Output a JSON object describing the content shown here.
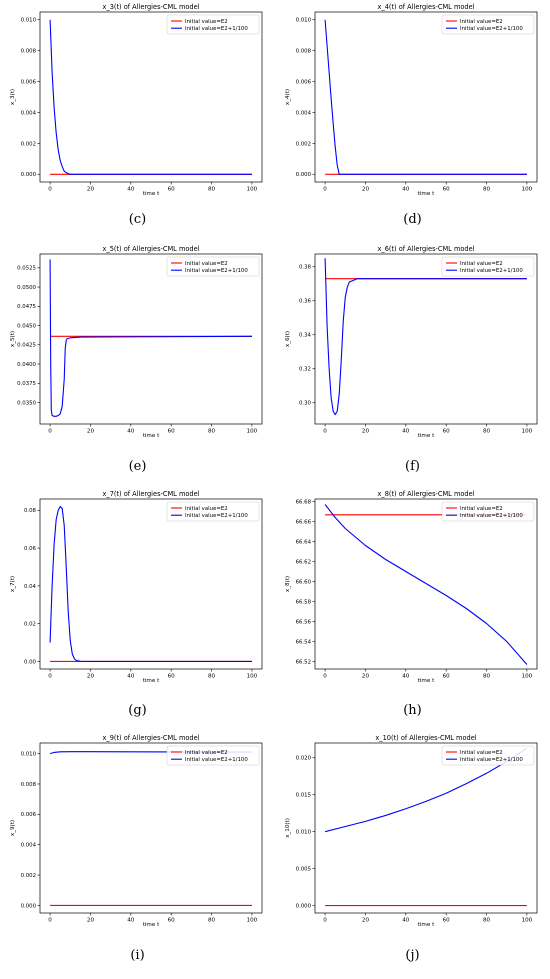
{
  "colors": {
    "red": "#ff0000",
    "blue": "#0000ff",
    "axis": "#000000"
  },
  "chart_data": [
    {
      "id": "c",
      "caption": "(c)",
      "type": "line",
      "title": "x_3(t) of Allergies-CML model",
      "xlabel": "time t",
      "ylabel": "x_3(t)",
      "xlim": [
        -5,
        105
      ],
      "ylim": [
        -0.0005,
        0.0105
      ],
      "xticks": [
        0,
        20,
        40,
        60,
        80,
        100
      ],
      "xtick_labels": [
        "0",
        "20",
        "40",
        "60",
        "80",
        "100"
      ],
      "yticks": [
        0,
        0.002,
        0.004,
        0.006,
        0.008,
        0.01
      ],
      "ytick_labels": [
        "0.000",
        "0.002",
        "0.004",
        "0.006",
        "0.008",
        "0.010"
      ],
      "legend_position": "top-right",
      "series": [
        {
          "name": "Initial value=E2",
          "color": "#ff0000",
          "x": [
            0,
            100
          ],
          "y": [
            0,
            0
          ]
        },
        {
          "name": "Initial value=E2+1/100",
          "color": "#0000ff",
          "x": [
            0,
            1,
            2,
            3,
            4,
            5,
            6,
            7,
            8,
            10,
            12,
            100
          ],
          "y": [
            0.01,
            0.0066,
            0.0043,
            0.0027,
            0.0016,
            0.0009,
            0.0005,
            0.0002,
            0.0001,
            0,
            0,
            0
          ]
        }
      ]
    },
    {
      "id": "d",
      "caption": "(d)",
      "type": "line",
      "title": "x_4(t) of Allergies-CML model",
      "xlabel": "time t",
      "ylabel": "x_4(t)",
      "xlim": [
        -5,
        105
      ],
      "ylim": [
        -0.0005,
        0.0105
      ],
      "xticks": [
        0,
        20,
        40,
        60,
        80,
        100
      ],
      "xtick_labels": [
        "0",
        "20",
        "40",
        "60",
        "80",
        "100"
      ],
      "yticks": [
        0,
        0.002,
        0.004,
        0.006,
        0.008,
        0.01
      ],
      "ytick_labels": [
        "0.000",
        "0.002",
        "0.004",
        "0.006",
        "0.008",
        "0.010"
      ],
      "legend_position": "top-right",
      "series": [
        {
          "name": "Initial value=E2",
          "color": "#ff0000",
          "x": [
            0,
            100
          ],
          "y": [
            0,
            0
          ]
        },
        {
          "name": "Initial value=E2+1/100",
          "color": "#0000ff",
          "x": [
            0,
            1,
            2,
            3,
            4,
            5,
            6,
            7,
            100
          ],
          "y": [
            0.01,
            0.0083,
            0.0066,
            0.0049,
            0.0033,
            0.0018,
            0.0006,
            0,
            0
          ]
        }
      ]
    },
    {
      "id": "e",
      "caption": "(e)",
      "type": "line",
      "title": "x_5(t) of Allergies-CML model",
      "xlabel": "time t",
      "ylabel": "x_5(t)",
      "xlim": [
        -5,
        105
      ],
      "ylim": [
        0.0322,
        0.0543
      ],
      "xticks": [
        0,
        20,
        40,
        60,
        80,
        100
      ],
      "xtick_labels": [
        "0",
        "20",
        "40",
        "60",
        "80",
        "100"
      ],
      "yticks": [
        0.035,
        0.0375,
        0.04,
        0.0425,
        0.045,
        0.0475,
        0.05,
        0.0525
      ],
      "ytick_labels": [
        "0.0350",
        "0.0375",
        "0.0400",
        "0.0425",
        "0.0450",
        "0.0475",
        "0.0500",
        "0.0525"
      ],
      "legend_position": "top-right",
      "series": [
        {
          "name": "Initial value=E2",
          "color": "#ff0000",
          "x": [
            0,
            100
          ],
          "y": [
            0.0436,
            0.0436
          ]
        },
        {
          "name": "Initial value=E2+1/100",
          "color": "#0000ff",
          "x": [
            0,
            0.3,
            0.6,
            1,
            2,
            3,
            4,
            5,
            6,
            7,
            7.5,
            8,
            8.5,
            10,
            15,
            100
          ],
          "y": [
            0.0536,
            0.04,
            0.034,
            0.0333,
            0.0332,
            0.0332,
            0.0333,
            0.0335,
            0.0345,
            0.038,
            0.042,
            0.0431,
            0.0433,
            0.0434,
            0.0435,
            0.0436
          ]
        }
      ]
    },
    {
      "id": "f",
      "caption": "(f)",
      "type": "line",
      "title": "x_6(t) of Allergies-CML model",
      "xlabel": "time t",
      "ylabel": "x_6(t)",
      "xlim": [
        -5,
        105
      ],
      "ylim": [
        0.2875,
        0.3875
      ],
      "xticks": [
        0,
        20,
        40,
        60,
        80,
        100
      ],
      "xtick_labels": [
        "0",
        "20",
        "40",
        "60",
        "80",
        "100"
      ],
      "yticks": [
        0.3,
        0.32,
        0.34,
        0.36,
        0.38
      ],
      "ytick_labels": [
        "0.30",
        "0.32",
        "0.34",
        "0.36",
        "0.38"
      ],
      "legend_position": "top-right",
      "series": [
        {
          "name": "Initial value=E2",
          "color": "#ff0000",
          "x": [
            0,
            100
          ],
          "y": [
            0.373,
            0.373
          ]
        },
        {
          "name": "Initial value=E2+1/100",
          "color": "#0000ff",
          "x": [
            0,
            0.5,
            1,
            2,
            3,
            4,
            5,
            6,
            7,
            8,
            9,
            10,
            11,
            12,
            14,
            16,
            20,
            100
          ],
          "y": [
            0.385,
            0.365,
            0.345,
            0.32,
            0.303,
            0.295,
            0.293,
            0.295,
            0.305,
            0.325,
            0.348,
            0.362,
            0.368,
            0.371,
            0.372,
            0.373,
            0.373,
            0.373
          ]
        }
      ]
    },
    {
      "id": "g",
      "caption": "(g)",
      "type": "line",
      "title": "x_7(t) of Allergies-CML model",
      "xlabel": "time t",
      "ylabel": "x_7(t)",
      "xlim": [
        -5,
        105
      ],
      "ylim": [
        -0.004,
        0.086
      ],
      "xticks": [
        0,
        20,
        40,
        60,
        80,
        100
      ],
      "xtick_labels": [
        "0",
        "20",
        "40",
        "60",
        "80",
        "100"
      ],
      "yticks": [
        0,
        0.02,
        0.04,
        0.06,
        0.08
      ],
      "ytick_labels": [
        "0.00",
        "0.02",
        "0.04",
        "0.06",
        "0.08"
      ],
      "legend_position": "top-right",
      "series": [
        {
          "name": "Initial value=E2",
          "color": "#ff0000",
          "x": [
            0,
            100
          ],
          "y": [
            0,
            0
          ]
        },
        {
          "name": "Initial value=E2+1/100",
          "color": "#0000ff",
          "x": [
            0,
            0.5,
            1,
            2,
            3,
            4,
            5,
            6,
            7,
            8,
            9,
            10,
            11,
            12,
            13,
            15,
            18,
            100
          ],
          "y": [
            0.01,
            0.025,
            0.04,
            0.062,
            0.075,
            0.08,
            0.082,
            0.081,
            0.072,
            0.05,
            0.026,
            0.011,
            0.004,
            0.0015,
            0.0005,
            0.0001,
            0,
            0
          ]
        }
      ]
    },
    {
      "id": "h",
      "caption": "(h)",
      "type": "line",
      "title": "x_8(t) of Allergies-CML model",
      "xlabel": "time t",
      "ylabel": "x_8(t)",
      "xlim": [
        -5,
        105
      ],
      "ylim": [
        66.5125,
        66.6825
      ],
      "xticks": [
        0,
        20,
        40,
        60,
        80,
        100
      ],
      "xtick_labels": [
        "0",
        "20",
        "40",
        "60",
        "80",
        "100"
      ],
      "yticks": [
        66.52,
        66.54,
        66.56,
        66.58,
        66.6,
        66.62,
        66.64,
        66.66,
        66.68
      ],
      "ytick_labels": [
        "66.52",
        "66.54",
        "66.56",
        "66.58",
        "66.60",
        "66.62",
        "66.64",
        "66.66",
        "66.68"
      ],
      "legend_position": "top-right",
      "series": [
        {
          "name": "Initial value=E2",
          "color": "#ff0000",
          "x": [
            0,
            100
          ],
          "y": [
            66.6667,
            66.6667
          ]
        },
        {
          "name": "Initial value=E2+1/100",
          "color": "#0000ff",
          "x": [
            0,
            5,
            10,
            20,
            30,
            40,
            50,
            60,
            70,
            80,
            90,
            100
          ],
          "y": [
            66.677,
            66.664,
            66.653,
            66.636,
            66.622,
            66.61,
            66.598,
            66.586,
            66.573,
            66.558,
            66.54,
            66.517
          ]
        }
      ]
    },
    {
      "id": "i",
      "caption": "(i)",
      "type": "line",
      "title": "x_9(t) of Allergies-CML model",
      "xlabel": "time t",
      "ylabel": "x_9(t)",
      "xlim": [
        -5,
        105
      ],
      "ylim": [
        -0.0005,
        0.0107
      ],
      "xticks": [
        0,
        20,
        40,
        60,
        80,
        100
      ],
      "xtick_labels": [
        "0",
        "20",
        "40",
        "60",
        "80",
        "100"
      ],
      "yticks": [
        0,
        0.002,
        0.004,
        0.006,
        0.008,
        0.01
      ],
      "ytick_labels": [
        "0.000",
        "0.002",
        "0.004",
        "0.006",
        "0.008",
        "0.010"
      ],
      "legend_position": "top-right",
      "series": [
        {
          "name": "Initial value=E2",
          "color": "#ff0000",
          "x": [
            0,
            100
          ],
          "y": [
            0,
            0
          ]
        },
        {
          "name": "Initial value=E2+1/100",
          "color": "#0000ff",
          "x": [
            0,
            2,
            5,
            10,
            20,
            40,
            60,
            80,
            100
          ],
          "y": [
            0.01,
            0.01008,
            0.01012,
            0.01013,
            0.01013,
            0.01012,
            0.01011,
            0.0101,
            0.0101
          ]
        }
      ]
    },
    {
      "id": "j",
      "caption": "(j)",
      "type": "line",
      "title": "x_10(t) of Allergies-CML model",
      "xlabel": "time t",
      "ylabel": "x_10(t)",
      "xlim": [
        -5,
        105
      ],
      "ylim": [
        -0.001,
        0.022
      ],
      "xticks": [
        0,
        20,
        40,
        60,
        80,
        100
      ],
      "xtick_labels": [
        "0",
        "20",
        "40",
        "60",
        "80",
        "100"
      ],
      "yticks": [
        0,
        0.005,
        0.01,
        0.015,
        0.02
      ],
      "ytick_labels": [
        "0.000",
        "0.005",
        "0.010",
        "0.015",
        "0.020"
      ],
      "legend_position": "top-right",
      "series": [
        {
          "name": "Initial value=E2",
          "color": "#ff0000",
          "x": [
            0,
            100
          ],
          "y": [
            0,
            0
          ]
        },
        {
          "name": "Initial value=E2+1/100",
          "color": "#0000ff",
          "x": [
            0,
            10,
            20,
            30,
            40,
            50,
            60,
            70,
            80,
            90,
            100
          ],
          "y": [
            0.01,
            0.0107,
            0.0114,
            0.0122,
            0.0131,
            0.0141,
            0.0152,
            0.0165,
            0.0179,
            0.0195,
            0.0213
          ]
        }
      ]
    }
  ]
}
